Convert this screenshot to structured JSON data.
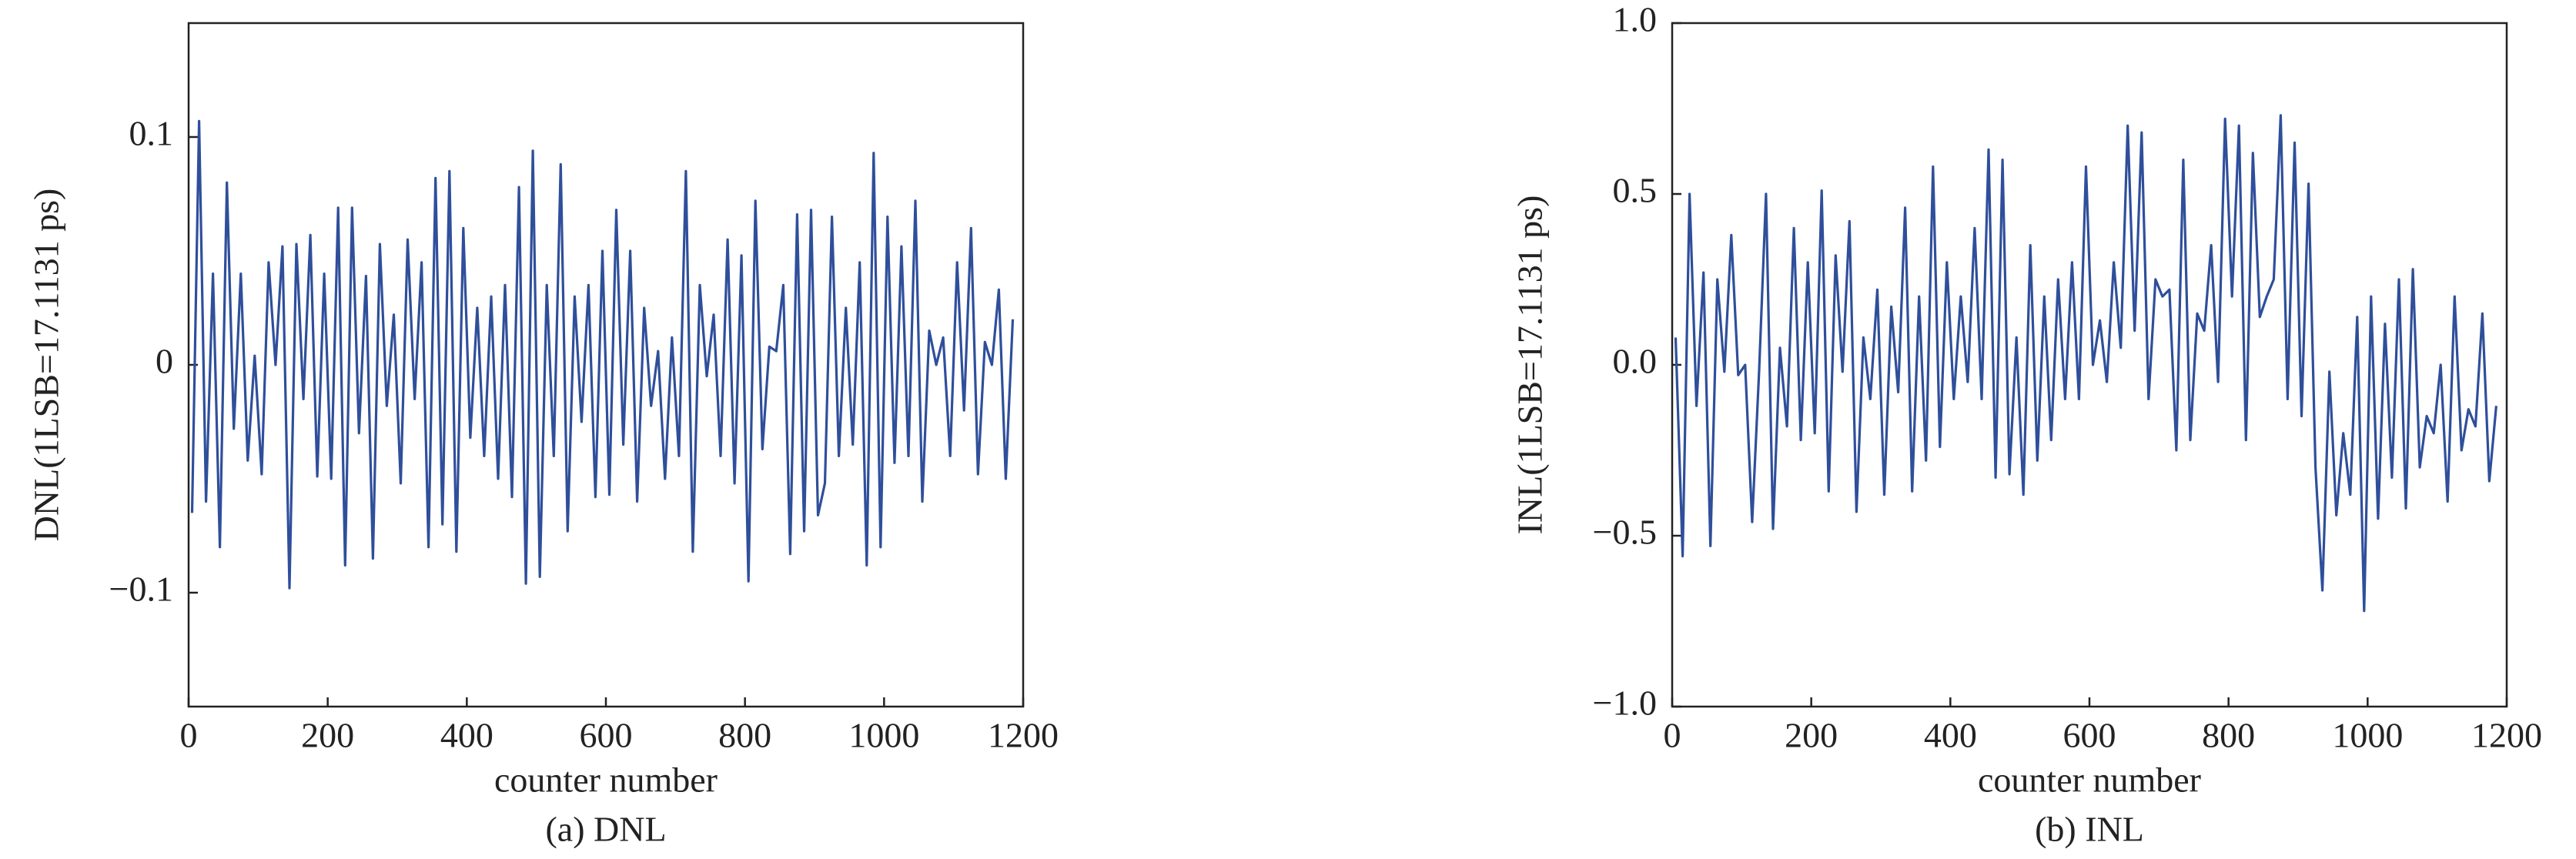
{
  "chart_data": [
    {
      "type": "line",
      "y_label": "DNL(1LSB=17.1131 ps)",
      "x_label": "counter number",
      "caption": "(a) DNL",
      "x": [
        5,
        15,
        25,
        35,
        45,
        55,
        65,
        75,
        85,
        95,
        105,
        115,
        125,
        135,
        145,
        155,
        165,
        175,
        185,
        195,
        205,
        215,
        225,
        235,
        245,
        255,
        265,
        275,
        285,
        295,
        305,
        315,
        325,
        335,
        345,
        355,
        365,
        375,
        385,
        395,
        405,
        415,
        425,
        435,
        445,
        455,
        465,
        475,
        485,
        495,
        505,
        515,
        525,
        535,
        545,
        555,
        565,
        575,
        585,
        595,
        605,
        615,
        625,
        635,
        645,
        655,
        665,
        675,
        685,
        695,
        705,
        715,
        725,
        735,
        745,
        755,
        765,
        775,
        785,
        795,
        805,
        815,
        825,
        835,
        845,
        855,
        865,
        875,
        885,
        895,
        905,
        915,
        925,
        935,
        945,
        955,
        965,
        975,
        985,
        995,
        1005,
        1015,
        1025,
        1035,
        1045,
        1055,
        1065,
        1075,
        1085,
        1095,
        1105,
        1115,
        1125,
        1135,
        1145,
        1155,
        1165,
        1175,
        1185
      ],
      "series": [
        {
          "color": "#2f4f9b",
          "values": [
            -0.065,
            0.107,
            -0.06,
            0.04,
            -0.08,
            0.08,
            -0.028,
            0.04,
            -0.042,
            0.004,
            -0.048,
            0.045,
            0.0,
            0.052,
            -0.098,
            0.053,
            -0.015,
            0.057,
            -0.049,
            0.04,
            -0.05,
            0.069,
            -0.088,
            0.069,
            -0.03,
            0.039,
            -0.085,
            0.053,
            -0.018,
            0.022,
            -0.052,
            0.055,
            -0.015,
            0.045,
            -0.08,
            0.082,
            -0.07,
            0.085,
            -0.082,
            0.06,
            -0.032,
            0.025,
            -0.04,
            0.03,
            -0.05,
            0.035,
            -0.058,
            0.078,
            -0.096,
            0.094,
            -0.093,
            0.035,
            -0.04,
            0.088,
            -0.073,
            0.03,
            -0.025,
            0.035,
            -0.058,
            0.05,
            -0.057,
            0.068,
            -0.035,
            0.05,
            -0.06,
            0.025,
            -0.018,
            0.006,
            -0.05,
            0.012,
            -0.04,
            0.085,
            -0.082,
            0.035,
            -0.005,
            0.022,
            -0.04,
            0.055,
            -0.052,
            0.048,
            -0.095,
            0.072,
            -0.037,
            0.008,
            0.006,
            0.035,
            -0.083,
            0.066,
            -0.073,
            0.068,
            -0.066,
            -0.052,
            0.065,
            -0.04,
            0.025,
            -0.035,
            0.045,
            -0.088,
            0.093,
            -0.08,
            0.065,
            -0.043,
            0.052,
            -0.04,
            0.072,
            -0.06,
            0.015,
            0.0,
            0.012,
            -0.04,
            0.045,
            -0.02,
            0.06,
            -0.048,
            0.01,
            0.0,
            0.033,
            -0.05,
            0.02
          ]
        }
      ],
      "xlim": [
        0,
        1200
      ],
      "xticks": [
        0,
        200,
        400,
        600,
        800,
        1000,
        1200
      ],
      "ylim": [
        -0.15,
        0.15
      ],
      "yticks": [
        {
          "value": -0.1,
          "label": "−0.1"
        },
        0,
        0.1
      ]
    },
    {
      "type": "line",
      "y_label": "INL(1LSB=17.1131 ps)",
      "x_label": "counter number",
      "caption": "(b) INL",
      "x": [
        5,
        15,
        25,
        35,
        45,
        55,
        65,
        75,
        85,
        95,
        105,
        115,
        125,
        135,
        145,
        155,
        165,
        175,
        185,
        195,
        205,
        215,
        225,
        235,
        245,
        255,
        265,
        275,
        285,
        295,
        305,
        315,
        325,
        335,
        345,
        355,
        365,
        375,
        385,
        395,
        405,
        415,
        425,
        435,
        445,
        455,
        465,
        475,
        485,
        495,
        505,
        515,
        525,
        535,
        545,
        555,
        565,
        575,
        585,
        595,
        605,
        615,
        625,
        635,
        645,
        655,
        665,
        675,
        685,
        695,
        705,
        715,
        725,
        735,
        745,
        755,
        765,
        775,
        785,
        795,
        805,
        815,
        825,
        835,
        845,
        855,
        865,
        875,
        885,
        895,
        905,
        915,
        925,
        935,
        945,
        955,
        965,
        975,
        985,
        995,
        1005,
        1015,
        1025,
        1035,
        1045,
        1055,
        1065,
        1075,
        1085,
        1095,
        1105,
        1115,
        1125,
        1135,
        1145,
        1155,
        1165,
        1175,
        1185
      ],
      "series": [
        {
          "color": "#2f4f9b",
          "values": [
            0.08,
            -0.56,
            0.5,
            -0.12,
            0.27,
            -0.53,
            0.25,
            -0.02,
            0.38,
            -0.03,
            0.0,
            -0.46,
            -0.02,
            0.5,
            -0.48,
            0.05,
            -0.18,
            0.4,
            -0.22,
            0.3,
            -0.2,
            0.51,
            -0.37,
            0.32,
            -0.02,
            0.42,
            -0.43,
            0.08,
            -0.1,
            0.22,
            -0.38,
            0.17,
            -0.08,
            0.46,
            -0.37,
            0.2,
            -0.28,
            0.58,
            -0.24,
            0.3,
            -0.1,
            0.2,
            -0.05,
            0.4,
            -0.1,
            0.63,
            -0.33,
            0.6,
            -0.32,
            0.08,
            -0.38,
            0.35,
            -0.28,
            0.2,
            -0.22,
            0.25,
            -0.1,
            0.3,
            -0.1,
            0.58,
            0.0,
            0.13,
            -0.05,
            0.3,
            0.05,
            0.7,
            0.1,
            0.68,
            -0.1,
            0.25,
            0.2,
            0.22,
            -0.25,
            0.6,
            -0.22,
            0.15,
            0.1,
            0.35,
            -0.05,
            0.72,
            0.2,
            0.7,
            -0.22,
            0.62,
            0.14,
            0.2,
            0.25,
            0.73,
            -0.1,
            0.65,
            -0.15,
            0.53,
            -0.3,
            -0.66,
            -0.02,
            -0.44,
            -0.2,
            -0.38,
            0.14,
            -0.72,
            0.2,
            -0.45,
            0.12,
            -0.33,
            0.25,
            -0.42,
            0.28,
            -0.3,
            -0.15,
            -0.2,
            0.0,
            -0.4,
            0.2,
            -0.25,
            -0.13,
            -0.18,
            0.15,
            -0.34,
            -0.12
          ]
        }
      ],
      "xlim": [
        0,
        1200
      ],
      "xticks": [
        0,
        200,
        400,
        600,
        800,
        1000,
        1200
      ],
      "ylim": [
        -1,
        1
      ],
      "yticks": [
        {
          "value": -1,
          "label": "−1.0"
        },
        {
          "value": -0.5,
          "label": "−0.5"
        },
        {
          "value": 0,
          "label": "0.0"
        },
        {
          "value": 0.5,
          "label": "0.5"
        },
        {
          "value": 1,
          "label": "1.0"
        }
      ]
    }
  ]
}
